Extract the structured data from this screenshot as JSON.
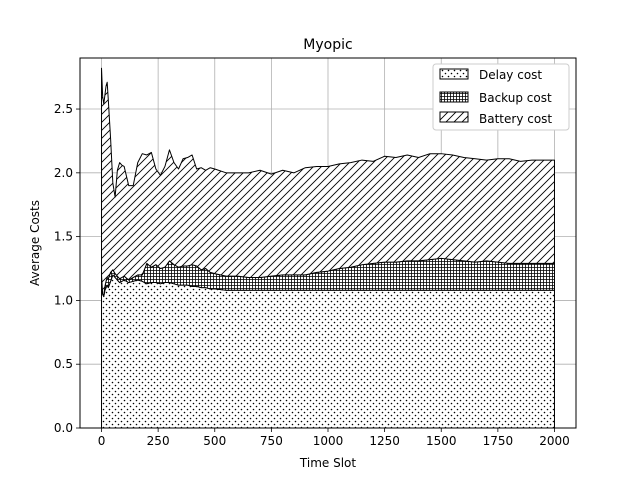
{
  "chart_data": {
    "type": "area",
    "stacked": true,
    "title": "Myopic",
    "xlabel": "Time Slot",
    "ylabel": "Average Costs",
    "xlim": [
      -95,
      2095
    ],
    "ylim": [
      0,
      2.9
    ],
    "xticks": [
      0,
      250,
      500,
      750,
      1000,
      1250,
      1500,
      1750,
      2000
    ],
    "yticks": [
      0.0,
      0.5,
      1.0,
      1.5,
      2.0,
      2.5
    ],
    "xtick_labels": [
      "0",
      "250",
      "500",
      "750",
      "1000",
      "1250",
      "1500",
      "1750",
      "2000"
    ],
    "ytick_labels": [
      "0.0",
      "0.5",
      "1.0",
      "1.5",
      "2.0",
      "2.5"
    ],
    "grid": true,
    "legend_position": "top-right",
    "x": [
      0,
      5,
      10,
      15,
      20,
      25,
      30,
      40,
      50,
      60,
      70,
      80,
      90,
      100,
      120,
      140,
      160,
      180,
      200,
      220,
      240,
      260,
      280,
      300,
      320,
      340,
      360,
      380,
      400,
      420,
      440,
      460,
      480,
      500,
      550,
      600,
      650,
      700,
      750,
      800,
      850,
      900,
      950,
      1000,
      1050,
      1100,
      1150,
      1200,
      1250,
      1300,
      1350,
      1400,
      1450,
      1500,
      1550,
      1600,
      1650,
      1700,
      1750,
      1800,
      1850,
      1900,
      1950,
      2000
    ],
    "series": [
      {
        "name": "Delay cost",
        "pattern": "dots",
        "values": [
          1.2,
          1.05,
          1.03,
          1.08,
          1.1,
          1.12,
          1.1,
          1.15,
          1.2,
          1.18,
          1.16,
          1.14,
          1.15,
          1.16,
          1.14,
          1.15,
          1.16,
          1.15,
          1.13,
          1.14,
          1.14,
          1.13,
          1.14,
          1.14,
          1.13,
          1.12,
          1.12,
          1.12,
          1.11,
          1.11,
          1.1,
          1.1,
          1.09,
          1.09,
          1.08,
          1.08,
          1.08,
          1.08,
          1.08,
          1.08,
          1.08,
          1.08,
          1.08,
          1.08,
          1.08,
          1.08,
          1.08,
          1.08,
          1.08,
          1.08,
          1.08,
          1.08,
          1.08,
          1.08,
          1.08,
          1.08,
          1.08,
          1.08,
          1.08,
          1.08,
          1.08,
          1.08,
          1.08,
          1.08
        ]
      },
      {
        "name": "Backup cost",
        "pattern": "grid",
        "values": [
          0.0,
          0.0,
          0.01,
          0.03,
          0.05,
          0.06,
          0.07,
          0.07,
          0.04,
          0.03,
          0.03,
          0.03,
          0.03,
          0.03,
          0.02,
          0.03,
          0.04,
          0.05,
          0.16,
          0.12,
          0.14,
          0.12,
          0.12,
          0.17,
          0.15,
          0.14,
          0.15,
          0.15,
          0.17,
          0.16,
          0.14,
          0.15,
          0.13,
          0.12,
          0.11,
          0.11,
          0.1,
          0.1,
          0.11,
          0.12,
          0.12,
          0.12,
          0.14,
          0.15,
          0.17,
          0.18,
          0.2,
          0.21,
          0.22,
          0.22,
          0.23,
          0.23,
          0.24,
          0.25,
          0.24,
          0.23,
          0.22,
          0.23,
          0.22,
          0.21,
          0.21,
          0.21,
          0.21,
          0.21
        ]
      },
      {
        "name": "Battery cost",
        "pattern": "diagonal",
        "values": [
          1.62,
          1.55,
          1.5,
          1.5,
          1.53,
          1.53,
          1.4,
          1.05,
          0.68,
          0.6,
          0.83,
          0.91,
          0.88,
          0.86,
          0.74,
          0.72,
          0.88,
          0.95,
          0.85,
          0.9,
          0.75,
          0.73,
          0.79,
          0.87,
          0.8,
          0.77,
          0.84,
          0.85,
          0.86,
          0.76,
          0.8,
          0.77,
          0.82,
          0.82,
          0.81,
          0.81,
          0.82,
          0.84,
          0.8,
          0.82,
          0.8,
          0.84,
          0.83,
          0.82,
          0.82,
          0.82,
          0.82,
          0.8,
          0.83,
          0.82,
          0.83,
          0.81,
          0.83,
          0.82,
          0.82,
          0.81,
          0.81,
          0.79,
          0.81,
          0.82,
          0.8,
          0.81,
          0.81,
          0.81
        ]
      }
    ]
  }
}
